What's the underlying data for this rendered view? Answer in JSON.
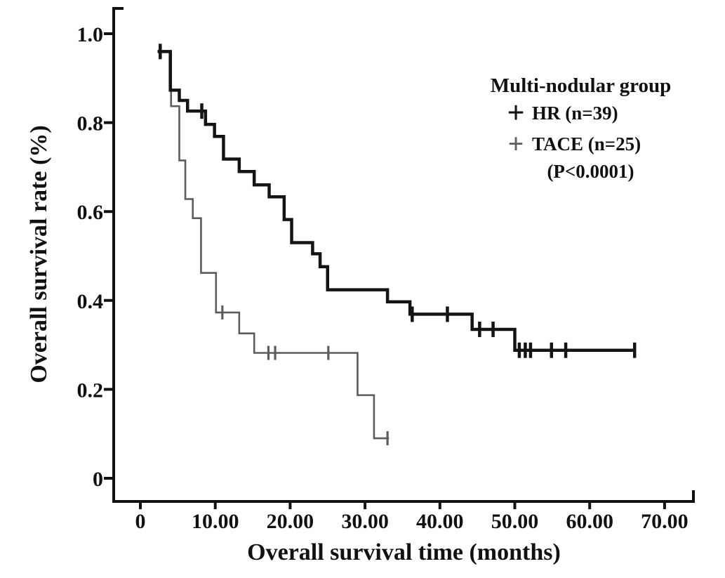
{
  "chart_data": {
    "type": "line",
    "subtype": "kaplan-meier-step",
    "title": "",
    "xlabel": "Overall survival time (months)",
    "ylabel": "Overall survival rate (%)",
    "xlim": [
      0,
      74
    ],
    "ylim": [
      0,
      1.05
    ],
    "grid": false,
    "x_ticks": {
      "values": [
        0,
        10,
        20,
        30,
        40,
        50,
        60,
        70
      ],
      "labels": [
        "0",
        "10.00",
        "20.00",
        "30.00",
        "40.00",
        "50.00",
        "60.00",
        "70.00"
      ]
    },
    "y_ticks": {
      "values": [
        0,
        0.2,
        0.4,
        0.6,
        0.8,
        1.0
      ],
      "labels": [
        "0",
        "0.2",
        "0.4",
        "0.6",
        "0.8",
        "1.0"
      ]
    },
    "legend": {
      "position": "upper-right",
      "title": "Multi-nodular group",
      "entries": [
        {
          "marker": "+",
          "label": "HR (n=39)",
          "color": "#141414"
        },
        {
          "marker": "+",
          "label": "TACE (n=25)",
          "color": "#5c5c5c"
        }
      ],
      "note": "(P<0.0001)"
    },
    "axis_color": "#111111",
    "series": [
      {
        "name": "HR (n=39)",
        "color": "#141414",
        "line_width": 4.5,
        "start": [
          2.3,
          0.96
        ],
        "drops": [
          [
            4.0,
            0.873
          ],
          [
            5.2,
            0.85
          ],
          [
            6.3,
            0.826
          ],
          [
            8.7,
            0.796
          ],
          [
            9.9,
            0.769
          ],
          [
            11.1,
            0.718
          ],
          [
            13.2,
            0.69
          ],
          [
            15.2,
            0.66
          ],
          [
            17.2,
            0.633
          ],
          [
            19.2,
            0.582
          ],
          [
            20.2,
            0.53
          ],
          [
            23.0,
            0.505
          ],
          [
            24.0,
            0.476
          ],
          [
            25.0,
            0.424
          ],
          [
            33.0,
            0.397
          ],
          [
            36.0,
            0.369
          ],
          [
            44.3,
            0.335
          ],
          [
            50.0,
            0.288
          ]
        ],
        "end_t": 66.0,
        "censors": [
          [
            2.65,
            0.96
          ],
          [
            8.2,
            0.826
          ],
          [
            36.3,
            0.369
          ],
          [
            41.0,
            0.369
          ],
          [
            45.3,
            0.335
          ],
          [
            47.1,
            0.335
          ],
          [
            50.6,
            0.288
          ],
          [
            51.4,
            0.288
          ],
          [
            52.1,
            0.288
          ],
          [
            54.9,
            0.288
          ],
          [
            56.8,
            0.288
          ],
          [
            66.0,
            0.288
          ]
        ]
      },
      {
        "name": "TACE (n=25)",
        "color": "#5c5c5c",
        "line_width": 2.6,
        "start": [
          2.3,
          0.96
        ],
        "drops": [
          [
            4.1,
            0.837
          ],
          [
            5.2,
            0.715
          ],
          [
            6.0,
            0.628
          ],
          [
            7.0,
            0.585
          ],
          [
            8.1,
            0.462
          ],
          [
            10.1,
            0.373
          ],
          [
            13.2,
            0.326
          ],
          [
            15.2,
            0.282
          ],
          [
            29.0,
            0.187
          ],
          [
            31.2,
            0.09
          ]
        ],
        "end_t": 33.2,
        "censors": [
          [
            10.95,
            0.373
          ],
          [
            17.1,
            0.282
          ],
          [
            18.0,
            0.282
          ],
          [
            25.1,
            0.282
          ],
          [
            33.0,
            0.09
          ]
        ]
      }
    ]
  }
}
